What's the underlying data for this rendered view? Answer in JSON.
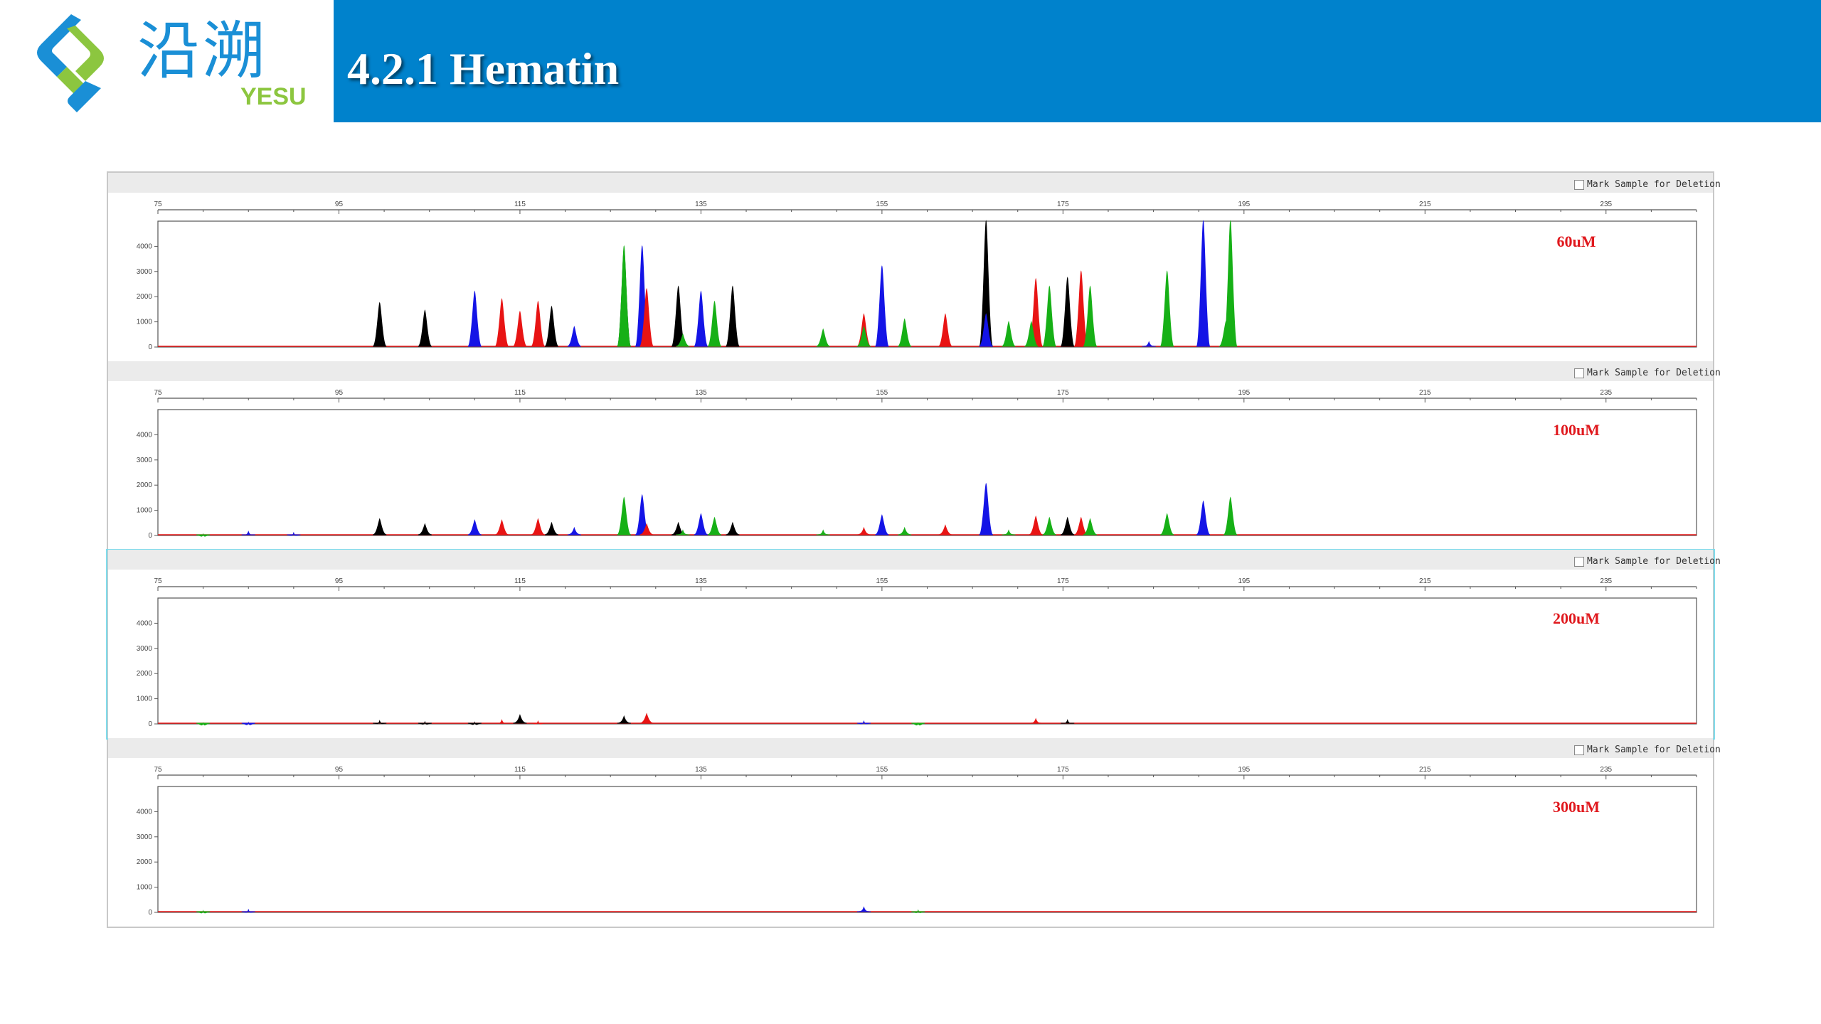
{
  "header": {
    "title": "4.2.1 Hematin",
    "logo_cn": "沿溯",
    "logo_en": "YESU",
    "band_color": "#0082cc"
  },
  "chart_data": [
    {
      "type": "line",
      "annotation": "60uM",
      "checkbox_label": "Mark Sample for Deletion",
      "xlim": [
        75,
        245
      ],
      "ylim": [
        0,
        5000
      ],
      "x_ticks": [
        75,
        95,
        115,
        135,
        155,
        175,
        195,
        215,
        235
      ],
      "y_ticks": [
        0,
        1000,
        2000,
        3000,
        4000
      ],
      "series": [
        {
          "color": "black",
          "peaks": [
            [
              99.5,
              1750
            ],
            [
              104.5,
              1450
            ],
            [
              118.5,
              1600
            ],
            [
              126.5,
              3900
            ],
            [
              132.5,
              2400
            ],
            [
              138.5,
              2400
            ],
            [
              166.5,
              5000
            ],
            [
              175.5,
              2750
            ]
          ]
        },
        {
          "color": "blue",
          "peaks": [
            [
              110,
              2200
            ],
            [
              117,
              900
            ],
            [
              121,
              800
            ],
            [
              128.5,
              4000
            ],
            [
              135,
              2200
            ],
            [
              155,
              3200
            ],
            [
              166.5,
              1300
            ],
            [
              184.5,
              200
            ],
            [
              190.5,
              5000
            ]
          ]
        },
        {
          "color": "red",
          "peaks": [
            [
              113,
              1900
            ],
            [
              115,
              1400
            ],
            [
              117,
              1800
            ],
            [
              129,
              2300
            ],
            [
              153,
              1300
            ],
            [
              162,
              1300
            ],
            [
              172,
              2700
            ],
            [
              177,
              3000
            ]
          ]
        },
        {
          "color": "green",
          "peaks": [
            [
              126.5,
              4000
            ],
            [
              133,
              500
            ],
            [
              136.5,
              1800
            ],
            [
              148.5,
              700
            ],
            [
              153,
              800
            ],
            [
              157.5,
              1100
            ],
            [
              169,
              1000
            ],
            [
              171.5,
              1000
            ],
            [
              173.5,
              2400
            ],
            [
              178,
              2400
            ],
            [
              186.5,
              3000
            ],
            [
              193.5,
              5000
            ],
            [
              193,
              1000
            ]
          ]
        }
      ]
    },
    {
      "type": "line",
      "annotation": "100uM",
      "checkbox_label": "Mark Sample for Deletion",
      "xlim": [
        75,
        245
      ],
      "ylim": [
        0,
        5000
      ],
      "x_ticks": [
        75,
        95,
        115,
        135,
        155,
        175,
        195,
        215,
        235
      ],
      "y_ticks": [
        0,
        1000,
        2000,
        3000,
        4000
      ],
      "series": [
        {
          "color": "black",
          "peaks": [
            [
              99.5,
              650
            ],
            [
              104.5,
              450
            ],
            [
              118.5,
              500
            ],
            [
              126.5,
              300
            ],
            [
              132.5,
              500
            ],
            [
              138.5,
              500
            ],
            [
              166.5,
              500
            ],
            [
              175.5,
              700
            ]
          ]
        },
        {
          "color": "blue",
          "peaks": [
            [
              85,
              150
            ],
            [
              90,
              100
            ],
            [
              110,
              600
            ],
            [
              121,
              300
            ],
            [
              128.5,
              1600
            ],
            [
              135,
              850
            ],
            [
              155,
              800
            ],
            [
              166.5,
              2050
            ],
            [
              190.5,
              1350
            ]
          ]
        },
        {
          "color": "red",
          "peaks": [
            [
              113,
              600
            ],
            [
              117,
              650
            ],
            [
              129,
              450
            ],
            [
              153,
              300
            ],
            [
              162,
              400
            ],
            [
              172,
              750
            ],
            [
              177,
              700
            ]
          ]
        },
        {
          "color": "green",
          "peaks": [
            [
              80,
              50
            ],
            [
              126.5,
              1500
            ],
            [
              133,
              200
            ],
            [
              136.5,
              700
            ],
            [
              148.5,
              200
            ],
            [
              157.5,
              300
            ],
            [
              169,
              200
            ],
            [
              173.5,
              700
            ],
            [
              178,
              650
            ],
            [
              186.5,
              850
            ],
            [
              193.5,
              1500
            ]
          ]
        }
      ]
    },
    {
      "type": "line",
      "annotation": "200uM",
      "checkbox_label": "Mark Sample for Deletion",
      "xlim": [
        75,
        245
      ],
      "ylim": [
        0,
        5000
      ],
      "x_ticks": [
        75,
        95,
        115,
        135,
        155,
        175,
        195,
        215,
        235
      ],
      "y_ticks": [
        0,
        1000,
        2000,
        3000,
        4000
      ],
      "series": [
        {
          "color": "black",
          "peaks": [
            [
              99.5,
              120
            ],
            [
              104.5,
              80
            ],
            [
              110,
              60
            ],
            [
              115,
              350
            ],
            [
              126.5,
              300
            ],
            [
              175.5,
              150
            ]
          ]
        },
        {
          "color": "blue",
          "peaks": [
            [
              85,
              50
            ],
            [
              153,
              100
            ]
          ]
        },
        {
          "color": "red",
          "peaks": [
            [
              113,
              150
            ],
            [
              117,
              100
            ],
            [
              129,
              400
            ],
            [
              172,
              200
            ]
          ]
        },
        {
          "color": "green",
          "peaks": [
            [
              80,
              30
            ],
            [
              159,
              30
            ]
          ]
        }
      ]
    },
    {
      "type": "line",
      "annotation": "300uM",
      "checkbox_label": "Mark Sample for Deletion",
      "xlim": [
        75,
        245
      ],
      "ylim": [
        0,
        5000
      ],
      "x_ticks": [
        75,
        95,
        115,
        135,
        155,
        175,
        195,
        215,
        235
      ],
      "y_ticks": [
        0,
        1000,
        2000,
        3000,
        4000
      ],
      "series": [
        {
          "color": "black",
          "peaks": []
        },
        {
          "color": "blue",
          "peaks": [
            [
              85,
              100
            ],
            [
              153,
              200
            ]
          ]
        },
        {
          "color": "red",
          "peaks": []
        },
        {
          "color": "green",
          "peaks": [
            [
              80,
              60
            ],
            [
              159,
              80
            ]
          ]
        }
      ]
    }
  ]
}
